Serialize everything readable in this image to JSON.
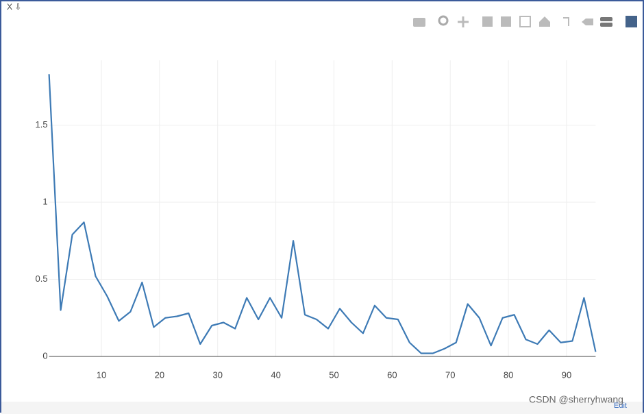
{
  "chart_data": {
    "type": "line",
    "x": [
      1,
      3,
      5,
      7,
      9,
      11,
      13,
      15,
      17,
      19,
      21,
      23,
      25,
      27,
      29,
      31,
      33,
      35,
      37,
      39,
      41,
      43,
      45,
      47,
      49,
      51,
      53,
      55,
      57,
      59,
      61,
      63,
      65,
      67,
      69,
      71,
      73,
      75,
      77,
      79,
      81,
      83,
      85,
      87,
      89,
      91,
      93,
      95
    ],
    "series": [
      {
        "color": "#3d7ab5",
        "values": [
          1.83,
          0.3,
          0.79,
          0.87,
          0.52,
          0.39,
          0.23,
          0.29,
          0.48,
          0.19,
          0.25,
          0.26,
          0.28,
          0.08,
          0.2,
          0.22,
          0.18,
          0.38,
          0.24,
          0.38,
          0.25,
          0.75,
          0.27,
          0.24,
          0.18,
          0.31,
          0.22,
          0.15,
          0.33,
          0.25,
          0.24,
          0.09,
          0.02,
          0.02,
          0.05,
          0.09,
          0.34,
          0.25,
          0.07,
          0.25,
          0.27,
          0.11,
          0.08,
          0.17,
          0.09,
          0.1,
          0.38,
          0.03
        ]
      }
    ],
    "xlim": [
      1,
      95
    ],
    "ylim": [
      0,
      1.92
    ],
    "xticks": [
      10,
      20,
      30,
      40,
      50,
      60,
      70,
      80,
      90
    ],
    "yticks": [
      0,
      0.5,
      1,
      1.5
    ],
    "grid": true
  },
  "ui": {
    "corner_label": "X ⇩",
    "edit_link": "Edit",
    "watermark": "CSDN @sherryhwang"
  }
}
